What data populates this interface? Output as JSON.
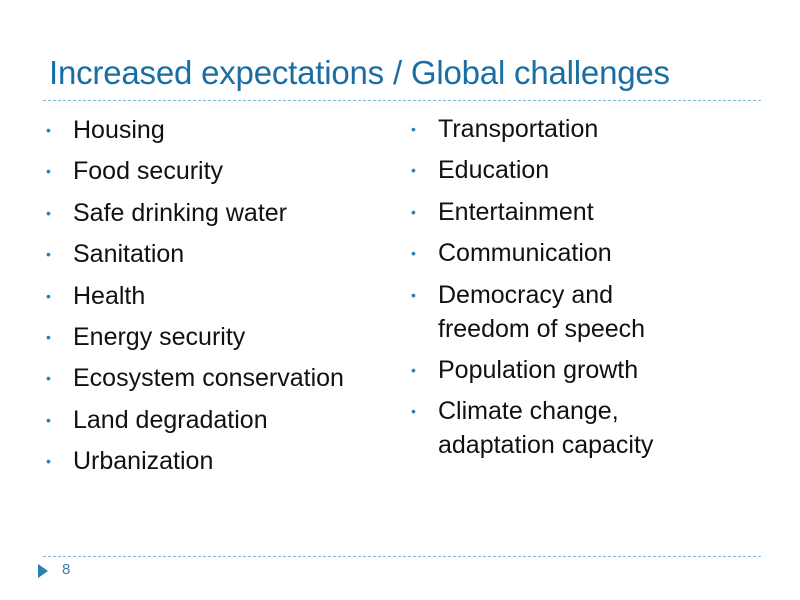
{
  "slide": {
    "title": "Increased expectations / Global challenges",
    "page_number": "8",
    "accent_color": "#1b6ea3",
    "left_items": [
      {
        "label": "Housing",
        "icon": "bullet-icon"
      },
      {
        "label": "Food security",
        "icon": "bullet-icon"
      },
      {
        "label": "Safe drinking water",
        "icon": "bullet-icon"
      },
      {
        "label": "Sanitation",
        "icon": "bullet-icon"
      },
      {
        "label": "Health",
        "icon": "bullet-icon"
      },
      {
        "label": "Energy security",
        "icon": "bullet-icon"
      },
      {
        "label": "Ecosystem conservation",
        "icon": "bullet-icon"
      },
      {
        "label": "Land degradation",
        "icon": "bullet-icon"
      },
      {
        "label": "Urbanization",
        "icon": "bullet-icon"
      }
    ],
    "right_items": [
      {
        "label": "Transportation",
        "icon": "bullet-icon"
      },
      {
        "label": "Education",
        "icon": "bullet-icon"
      },
      {
        "label": "Entertainment",
        "icon": "bullet-icon"
      },
      {
        "label": "Communication",
        "icon": "bullet-icon"
      },
      {
        "label": "Democracy and\nfreedom of speech",
        "icon": "bullet-icon"
      },
      {
        "label": "Population growth",
        "icon": "bullet-icon"
      },
      {
        "label": "Climate change,\nadaptation capacity",
        "icon": "bullet-icon"
      }
    ],
    "bullet_glyph": "•",
    "footer_icon": "play-arrow-icon"
  }
}
